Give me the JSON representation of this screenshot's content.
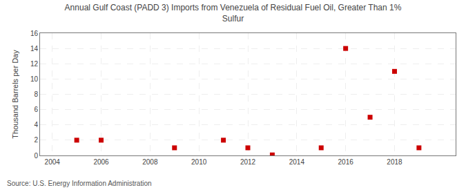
{
  "chart_data": {
    "type": "scatter",
    "title": "Annual Gulf Coast (PADD 3) Imports from Venezuela of Residual Fuel Oil, Greater Than 1%\nSulfur",
    "y_label": "Thousand Barrels per Day",
    "annotations": [
      "Source: U.S. Energy Information Administration"
    ],
    "x": [
      2005,
      2006,
      2009,
      2011,
      2012,
      2013,
      2015,
      2016,
      2017,
      2018,
      2019
    ],
    "values": [
      2,
      2,
      1,
      2,
      1,
      0.07,
      1,
      14,
      5,
      11,
      1
    ],
    "color": "#cc0000",
    "marker": "square",
    "xlim": [
      2003.5,
      2020.5
    ],
    "xticks": [
      2004,
      2006,
      2008,
      2010,
      2012,
      2014,
      2016,
      2018
    ],
    "ylim": [
      0,
      16
    ],
    "yticks": [
      0,
      2,
      4,
      6,
      8,
      10,
      12,
      14,
      16
    ],
    "grid": true
  }
}
